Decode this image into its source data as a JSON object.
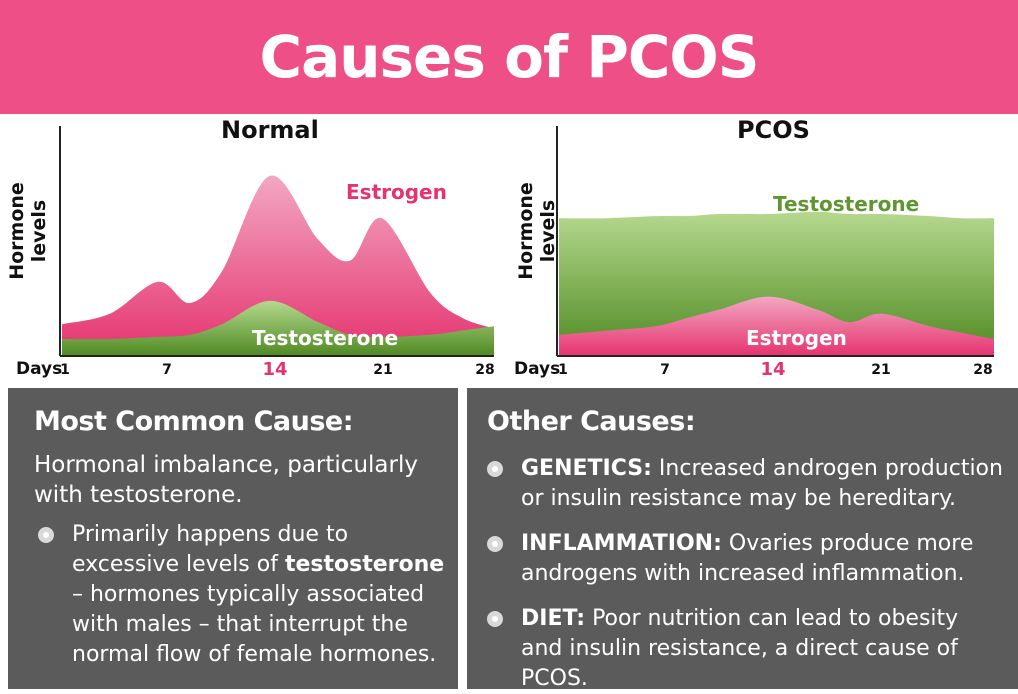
{
  "title": "Causes of PCOS",
  "charts": {
    "normal": {
      "title": "Normal",
      "ylabel": "Hormone levels",
      "xlabel": "Days",
      "estrogen_label": "Estrogen",
      "testosterone_label": "Testosterone"
    },
    "pcos": {
      "title": "PCOS",
      "ylabel": "Hormone levels",
      "xlabel": "Days",
      "estrogen_label": "Estrogen",
      "testosterone_label": "Testosterone"
    },
    "ticks": [
      "1",
      "7",
      "14",
      "21",
      "28"
    ]
  },
  "chart_data": [
    {
      "type": "area",
      "title": "Normal",
      "xlabel": "Days",
      "ylabel": "Hormone levels",
      "x": [
        1,
        4,
        7,
        9,
        11,
        14,
        17,
        19,
        21,
        24,
        26,
        28
      ],
      "series": [
        {
          "name": "Estrogen",
          "values": [
            15,
            20,
            35,
            25,
            40,
            85,
            55,
            45,
            65,
            30,
            18,
            13
          ],
          "color": "#e5336f"
        },
        {
          "name": "Testosterone",
          "values": [
            8,
            8,
            9,
            10,
            15,
            26,
            16,
            10,
            9,
            10,
            12,
            14
          ],
          "color": "#6f9a3a"
        }
      ],
      "ylim": [
        0,
        100
      ],
      "grid": false
    },
    {
      "type": "area",
      "title": "PCOS",
      "xlabel": "Days",
      "ylabel": "Hormone levels",
      "x": [
        1,
        4,
        7,
        9,
        11,
        14,
        17,
        19,
        21,
        24,
        26,
        28
      ],
      "series": [
        {
          "name": "Testosterone",
          "values": [
            65,
            65,
            66,
            66,
            67,
            67,
            68,
            67,
            67,
            66,
            65,
            65
          ],
          "color": "#5e9632"
        },
        {
          "name": "Estrogen",
          "values": [
            10,
            12,
            14,
            18,
            22,
            28,
            22,
            16,
            20,
            14,
            11,
            8
          ],
          "color": "#e5336f"
        }
      ],
      "ylim": [
        0,
        100
      ],
      "grid": false
    }
  ],
  "left_panel": {
    "heading": "Most Common Cause:",
    "subheading": "Hormonal imbalance, particularly with testosterone.",
    "bullet_pre": "Primarily happens due to excessive levels of ",
    "bullet_bold": "testosterone",
    "bullet_post": " – hormones typically associated with males – that interrupt the normal flow of female hormones."
  },
  "right_panel": {
    "heading": "Other Causes:",
    "items": [
      {
        "bold": "GENETICS:",
        "text": " Increased androgen production or insulin resistance may be hereditary."
      },
      {
        "bold": "INFLAMMATION:",
        "text": " Ovaries produce more androgens with increased inflammation."
      },
      {
        "bold": "DIET:",
        "text": " Poor nutrition can lead to obesity and insulin resistance, a direct cause of PCOS."
      }
    ]
  },
  "colors": {
    "banner": "#ee4f86",
    "estrogen": "#e5336f",
    "testosterone": "#5e9632",
    "panel": "#5b5b5b"
  }
}
